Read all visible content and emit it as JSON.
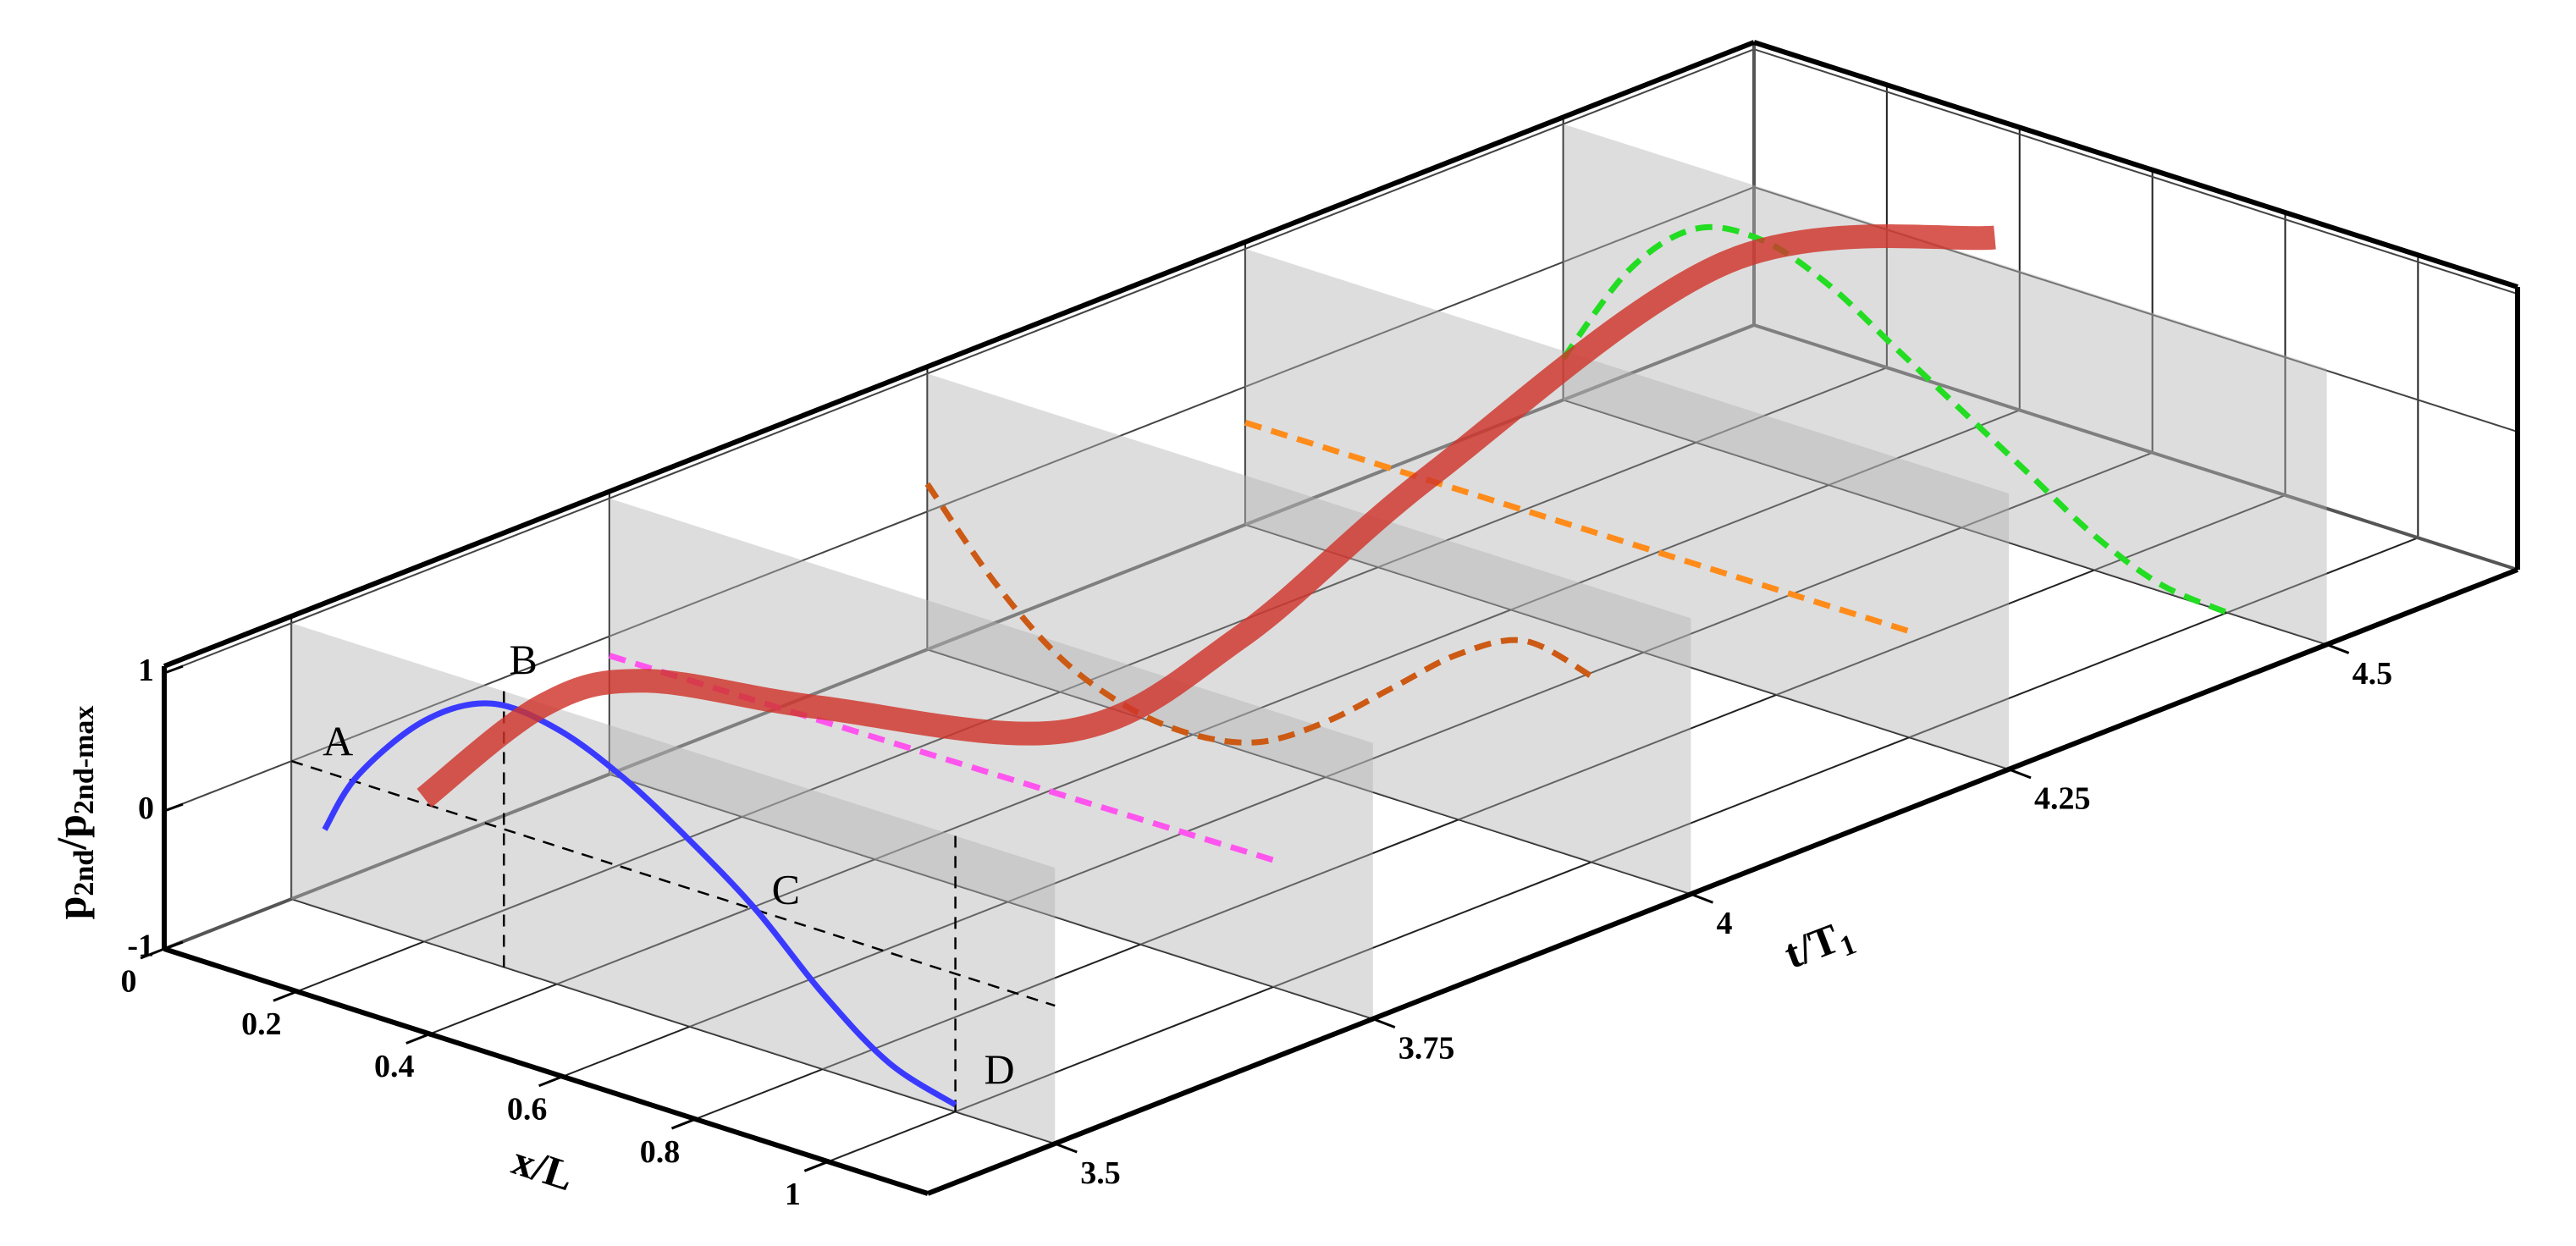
{
  "chart_data": {
    "type": "line3d",
    "xlabel": "x/L",
    "ylabel": [
      "t/T",
      "1"
    ],
    "zlabel": [
      "p",
      "2nd",
      "/p",
      "2nd-max"
    ],
    "xlim": [
      0,
      1.15
    ],
    "xticks": [
      0,
      0.2,
      0.4,
      0.6,
      0.8,
      1
    ],
    "ylim": [
      3.4,
      4.65
    ],
    "yticks": [
      3.5,
      3.75,
      4,
      4.25,
      4.5
    ],
    "zlim": [
      -1,
      1.05
    ],
    "zticks": [
      -1,
      0,
      1
    ],
    "slices": true,
    "grid": true,
    "series": [
      {
        "color": "#3a3aff",
        "style": "solid",
        "y": 3.5,
        "x": [
          0.05,
          0.1,
          0.2,
          0.3,
          0.4,
          0.5,
          0.6,
          0.7,
          0.8,
          0.9,
          1.0
        ],
        "values": [
          -0.42,
          0.05,
          0.6,
          0.88,
          0.85,
          0.65,
          0.35,
          0,
          -0.45,
          -0.8,
          -0.95
        ]
      },
      {
        "color": "#ff55ee",
        "style": "dashed",
        "y": 3.75,
        "x": [
          0,
          1
        ],
        "values": [
          -0.14,
          -0.08
        ]
      },
      {
        "color": "#cc5a14",
        "style": "dashed",
        "y": 4,
        "x": [
          0,
          0.1,
          0.2,
          0.3,
          0.4,
          0.5,
          0.6,
          0.7,
          0.8,
          0.9,
          1.0
        ],
        "values": [
          0.2,
          -0.35,
          -0.75,
          -0.95,
          -1.0,
          -0.9,
          -0.6,
          -0.2,
          0.2,
          0.45,
          0.35
        ]
      },
      {
        "color": "#ff8c1a",
        "style": "dashed",
        "y": 4.25,
        "x": [
          0,
          1
        ],
        "values": [
          -0.26,
          -0.23
        ]
      },
      {
        "color": "#22dd22",
        "style": "dashed",
        "y": 4.5,
        "x": [
          0,
          0.1,
          0.2,
          0.3,
          0.4,
          0.5,
          0.6,
          0.7,
          0.8,
          0.9,
          1.0
        ],
        "values": [
          -0.7,
          0.1,
          0.55,
          0.62,
          0.45,
          0.15,
          -0.15,
          -0.45,
          -0.75,
          -0.95,
          -1.0
        ]
      },
      {
        "color": "#d0352b",
        "style": "ribbon",
        "y": [
          3.5,
          3.575,
          3.64,
          3.75,
          3.91,
          4.02,
          4.14,
          4.33,
          4.5
        ],
        "x": [
          0.2,
          0.234,
          0.262,
          0.314,
          0.385,
          0.432,
          0.488,
          0.573,
          0.65
        ],
        "values": [
          0.04,
          0.49,
          0.48,
          -0.03,
          -0.67,
          -0.32,
          0.5,
          1.5,
          1.18
        ]
      }
    ],
    "annotations": [
      {
        "text": "A",
        "x": 0,
        "y": 3.5,
        "value": 0
      },
      {
        "text": "B",
        "x": 0.32,
        "y": 3.5,
        "value": 1
      },
      {
        "text": "C",
        "x": 0.7,
        "y": 3.5,
        "value": 0
      },
      {
        "text": "D",
        "x": 1,
        "y": 3.5,
        "value": -1
      }
    ]
  }
}
